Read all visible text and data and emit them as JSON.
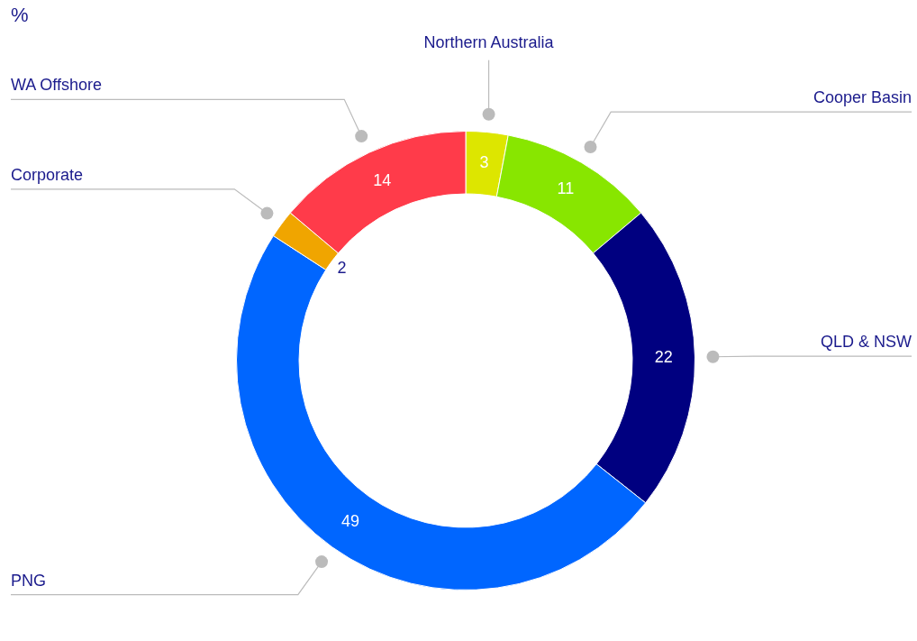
{
  "chart_data": {
    "type": "donut",
    "title": "%",
    "categories": [
      "Northern Australia",
      "Cooper Basin",
      "QLD & NSW",
      "PNG",
      "Corporate",
      "WA Offshore"
    ],
    "values": [
      3,
      11,
      22,
      49,
      2,
      14
    ],
    "colors": [
      "#dde600",
      "#88e600",
      "#000080",
      "#0066ff",
      "#f0a500",
      "#ff3b4a"
    ],
    "data_labels": true,
    "legend": false
  }
}
